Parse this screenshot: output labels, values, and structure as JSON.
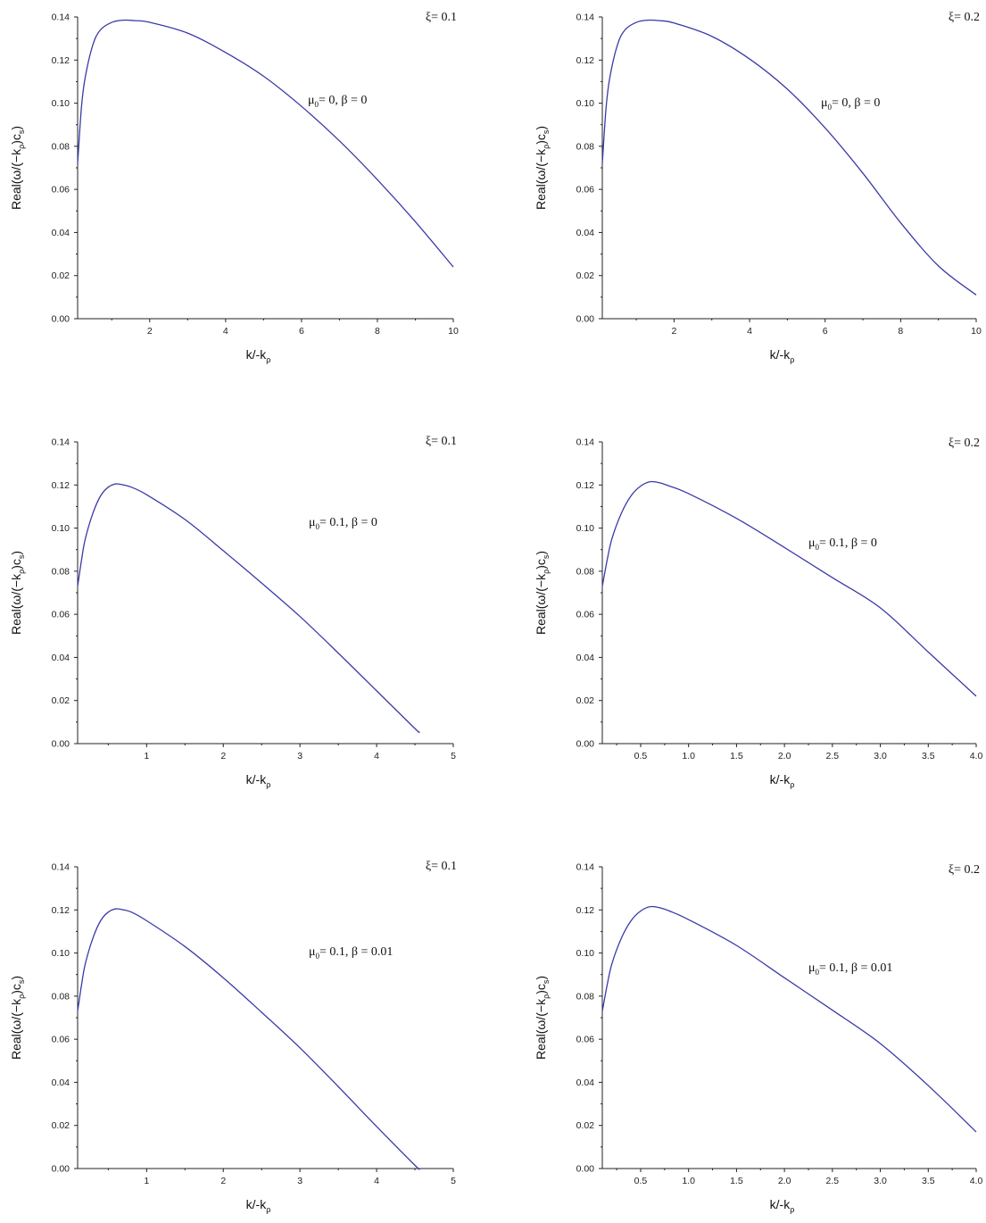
{
  "chart_data": [
    {
      "type": "line",
      "xlabel_main": "k/-k",
      "xlabel_sub": "ρ",
      "ylabel_pre": "Real(ω/(−k",
      "ylabel_sub1": "ρ",
      "ylabel_mid": ")c",
      "ylabel_sub2": "s",
      "ylabel_post": ")",
      "xlim": [
        0.1,
        10
      ],
      "ylim": [
        0,
        0.14
      ],
      "xticks": [
        "2",
        "4",
        "6",
        "8",
        "10"
      ],
      "xtick_values": [
        2,
        4,
        6,
        8,
        10
      ],
      "yticks": [
        "0.00",
        "0.02",
        "0.04",
        "0.06",
        "0.08",
        "0.10",
        "0.12",
        "0.14"
      ],
      "ytick_values": [
        0,
        0.02,
        0.04,
        0.06,
        0.08,
        0.1,
        0.12,
        0.14
      ],
      "corner_label": "ξ= 0.1",
      "param_mu": "μ",
      "param_mu_sub": "0",
      "param_rest": "= 0,  β = 0",
      "series": [
        {
          "x": [
            0.1,
            0.2,
            0.3,
            0.5,
            0.7,
            1.0,
            1.3,
            1.6,
            2.0,
            3.0,
            4.0,
            5.0,
            6.0,
            7.0,
            8.0,
            9.0,
            10.0
          ],
          "y": [
            0.072,
            0.098,
            0.112,
            0.127,
            0.134,
            0.1375,
            0.1385,
            0.1383,
            0.1375,
            0.1325,
            0.1235,
            0.1125,
            0.0985,
            0.0825,
            0.0645,
            0.045,
            0.024
          ]
        }
      ]
    },
    {
      "type": "line",
      "xlabel_main": "k/-k",
      "xlabel_sub": "ρ",
      "ylabel_pre": "Real(ω/(−k",
      "ylabel_sub1": "ρ",
      "ylabel_mid": ")c",
      "ylabel_sub2": "s",
      "ylabel_post": ")",
      "xlim": [
        0.1,
        10
      ],
      "ylim": [
        0,
        0.14
      ],
      "xticks": [
        "2",
        "4",
        "6",
        "8",
        "10"
      ],
      "xtick_values": [
        2,
        4,
        6,
        8,
        10
      ],
      "yticks": [
        "0.00",
        "0.02",
        "0.04",
        "0.06",
        "0.08",
        "0.10",
        "0.12",
        "0.14"
      ],
      "ytick_values": [
        0,
        0.02,
        0.04,
        0.06,
        0.08,
        0.1,
        0.12,
        0.14
      ],
      "corner_label": "ξ= 0.2",
      "param_mu": "μ",
      "param_mu_sub": "0",
      "param_rest": "= 0,  β = 0",
      "series": [
        {
          "x": [
            0.1,
            0.2,
            0.3,
            0.5,
            0.7,
            1.0,
            1.3,
            1.6,
            2.0,
            3.0,
            4.0,
            5.0,
            6.0,
            7.0,
            8.0,
            9.0,
            10.0
          ],
          "y": [
            0.072,
            0.098,
            0.112,
            0.127,
            0.134,
            0.1375,
            0.1385,
            0.1383,
            0.1372,
            0.131,
            0.1205,
            0.1065,
            0.0885,
            0.0675,
            0.0445,
            0.0245,
            0.011
          ]
        }
      ]
    },
    {
      "type": "line",
      "xlabel_main": "k/-k",
      "xlabel_sub": "ρ",
      "ylabel_pre": "Real(ω/(−k",
      "ylabel_sub1": "ρ",
      "ylabel_mid": ")c",
      "ylabel_sub2": "s",
      "ylabel_post": ")",
      "xlim": [
        0.1,
        5
      ],
      "ylim": [
        0,
        0.14
      ],
      "xticks": [
        "1",
        "2",
        "3",
        "4",
        "5"
      ],
      "xtick_values": [
        1,
        2,
        3,
        4,
        5
      ],
      "yticks": [
        "0.00",
        "0.02",
        "0.04",
        "0.06",
        "0.08",
        "0.10",
        "0.12",
        "0.14"
      ],
      "ytick_values": [
        0,
        0.02,
        0.04,
        0.06,
        0.08,
        0.1,
        0.12,
        0.14
      ],
      "corner_label": "ξ= 0.1",
      "param_mu": "μ",
      "param_mu_sub": "0",
      "param_rest": "= 0.1,  β = 0",
      "series": [
        {
          "x": [
            0.1,
            0.15,
            0.2,
            0.3,
            0.4,
            0.5,
            0.6,
            0.7,
            0.8,
            1.0,
            1.5,
            2.0,
            2.5,
            3.0,
            3.5,
            4.0,
            4.5,
            4.55
          ],
          "y": [
            0.073,
            0.085,
            0.095,
            0.107,
            0.115,
            0.119,
            0.1205,
            0.12,
            0.119,
            0.1155,
            0.104,
            0.0895,
            0.0745,
            0.059,
            0.042,
            0.0245,
            0.007,
            0.0055
          ]
        }
      ]
    },
    {
      "type": "line",
      "xlabel_main": "k/-k",
      "xlabel_sub": "ρ",
      "ylabel_pre": "Real(ω/(−k",
      "ylabel_sub1": "ρ",
      "ylabel_mid": ")c",
      "ylabel_sub2": "s",
      "ylabel_post": ")",
      "xlim": [
        0.1,
        4.0
      ],
      "ylim": [
        0,
        0.14
      ],
      "xticks": [
        "0.5",
        "1.0",
        "1.5",
        "2.0",
        "2.5",
        "3.0",
        "3.5",
        "4.0"
      ],
      "xtick_values": [
        0.5,
        1.0,
        1.5,
        2.0,
        2.5,
        3.0,
        3.5,
        4.0
      ],
      "yticks": [
        "0.00",
        "0.02",
        "0.04",
        "0.06",
        "0.08",
        "0.10",
        "0.12",
        "0.14"
      ],
      "ytick_values": [
        0,
        0.02,
        0.04,
        0.06,
        0.08,
        0.1,
        0.12,
        0.14
      ],
      "corner_label": "ξ= 0.2",
      "param_mu": "μ",
      "param_mu_sub": "0",
      "param_rest": "= 0.1,  β = 0",
      "series": [
        {
          "x": [
            0.1,
            0.15,
            0.2,
            0.3,
            0.4,
            0.5,
            0.6,
            0.7,
            0.8,
            1.0,
            1.5,
            2.0,
            2.5,
            3.0,
            3.5,
            4.0
          ],
          "y": [
            0.073,
            0.085,
            0.095,
            0.107,
            0.115,
            0.1195,
            0.1215,
            0.121,
            0.1195,
            0.116,
            0.1045,
            0.091,
            0.077,
            0.063,
            0.0425,
            0.022
          ]
        }
      ]
    },
    {
      "type": "line",
      "xlabel_main": "k/-k",
      "xlabel_sub": "ρ",
      "ylabel_pre": "Real(ω/(−k",
      "ylabel_sub1": "ρ",
      "ylabel_mid": ")c",
      "ylabel_sub2": "s",
      "ylabel_post": ")",
      "xlim": [
        0.1,
        5
      ],
      "ylim": [
        0,
        0.14
      ],
      "xticks": [
        "1",
        "2",
        "3",
        "4",
        "5"
      ],
      "xtick_values": [
        1,
        2,
        3,
        4,
        5
      ],
      "yticks": [
        "0.00",
        "0.02",
        "0.04",
        "0.06",
        "0.08",
        "0.10",
        "0.12",
        "0.14"
      ],
      "ytick_values": [
        0,
        0.02,
        0.04,
        0.06,
        0.08,
        0.1,
        0.12,
        0.14
      ],
      "corner_label": "ξ= 0.1",
      "param_mu": "μ",
      "param_mu_sub": "0",
      "param_rest": "= 0.1,  β = 0.01",
      "series": [
        {
          "x": [
            0.1,
            0.15,
            0.2,
            0.3,
            0.4,
            0.5,
            0.6,
            0.7,
            0.8,
            1.0,
            1.5,
            2.0,
            2.5,
            3.0,
            3.5,
            4.0,
            4.5,
            4.55
          ],
          "y": [
            0.073,
            0.085,
            0.095,
            0.107,
            0.115,
            0.119,
            0.1205,
            0.12,
            0.119,
            0.115,
            0.103,
            0.0885,
            0.0725,
            0.056,
            0.038,
            0.0195,
            0.0015,
            0.0
          ]
        }
      ]
    },
    {
      "type": "line",
      "xlabel_main": "k/-k",
      "xlabel_sub": "ρ",
      "ylabel_pre": "Real(ω/(−k",
      "ylabel_sub1": "ρ",
      "ylabel_mid": ")c",
      "ylabel_sub2": "s",
      "ylabel_post": ")",
      "xlim": [
        0.1,
        4.0
      ],
      "ylim": [
        0,
        0.14
      ],
      "xticks": [
        "0.5",
        "1.0",
        "1.5",
        "2.0",
        "2.5",
        "3.0",
        "3.5",
        "4.0"
      ],
      "xtick_values": [
        0.5,
        1.0,
        1.5,
        2.0,
        2.5,
        3.0,
        3.5,
        4.0
      ],
      "yticks": [
        "0.00",
        "0.02",
        "0.04",
        "0.06",
        "0.08",
        "0.10",
        "0.12",
        "0.14"
      ],
      "ytick_values": [
        0,
        0.02,
        0.04,
        0.06,
        0.08,
        0.1,
        0.12,
        0.14
      ],
      "corner_label": "ξ= 0.2",
      "param_mu": "μ",
      "param_mu_sub": "0",
      "param_rest": "= 0.1,  β = 0.01",
      "series": [
        {
          "x": [
            0.1,
            0.15,
            0.2,
            0.3,
            0.4,
            0.5,
            0.6,
            0.7,
            0.8,
            1.0,
            1.5,
            2.0,
            2.5,
            3.0,
            3.5,
            4.0
          ],
          "y": [
            0.073,
            0.085,
            0.095,
            0.107,
            0.115,
            0.1195,
            0.1215,
            0.121,
            0.1195,
            0.1155,
            0.1035,
            0.0885,
            0.0735,
            0.058,
            0.0385,
            0.017
          ]
        }
      ]
    }
  ],
  "colors": {
    "curve": "#3a3aa8",
    "axes": "#222222"
  }
}
